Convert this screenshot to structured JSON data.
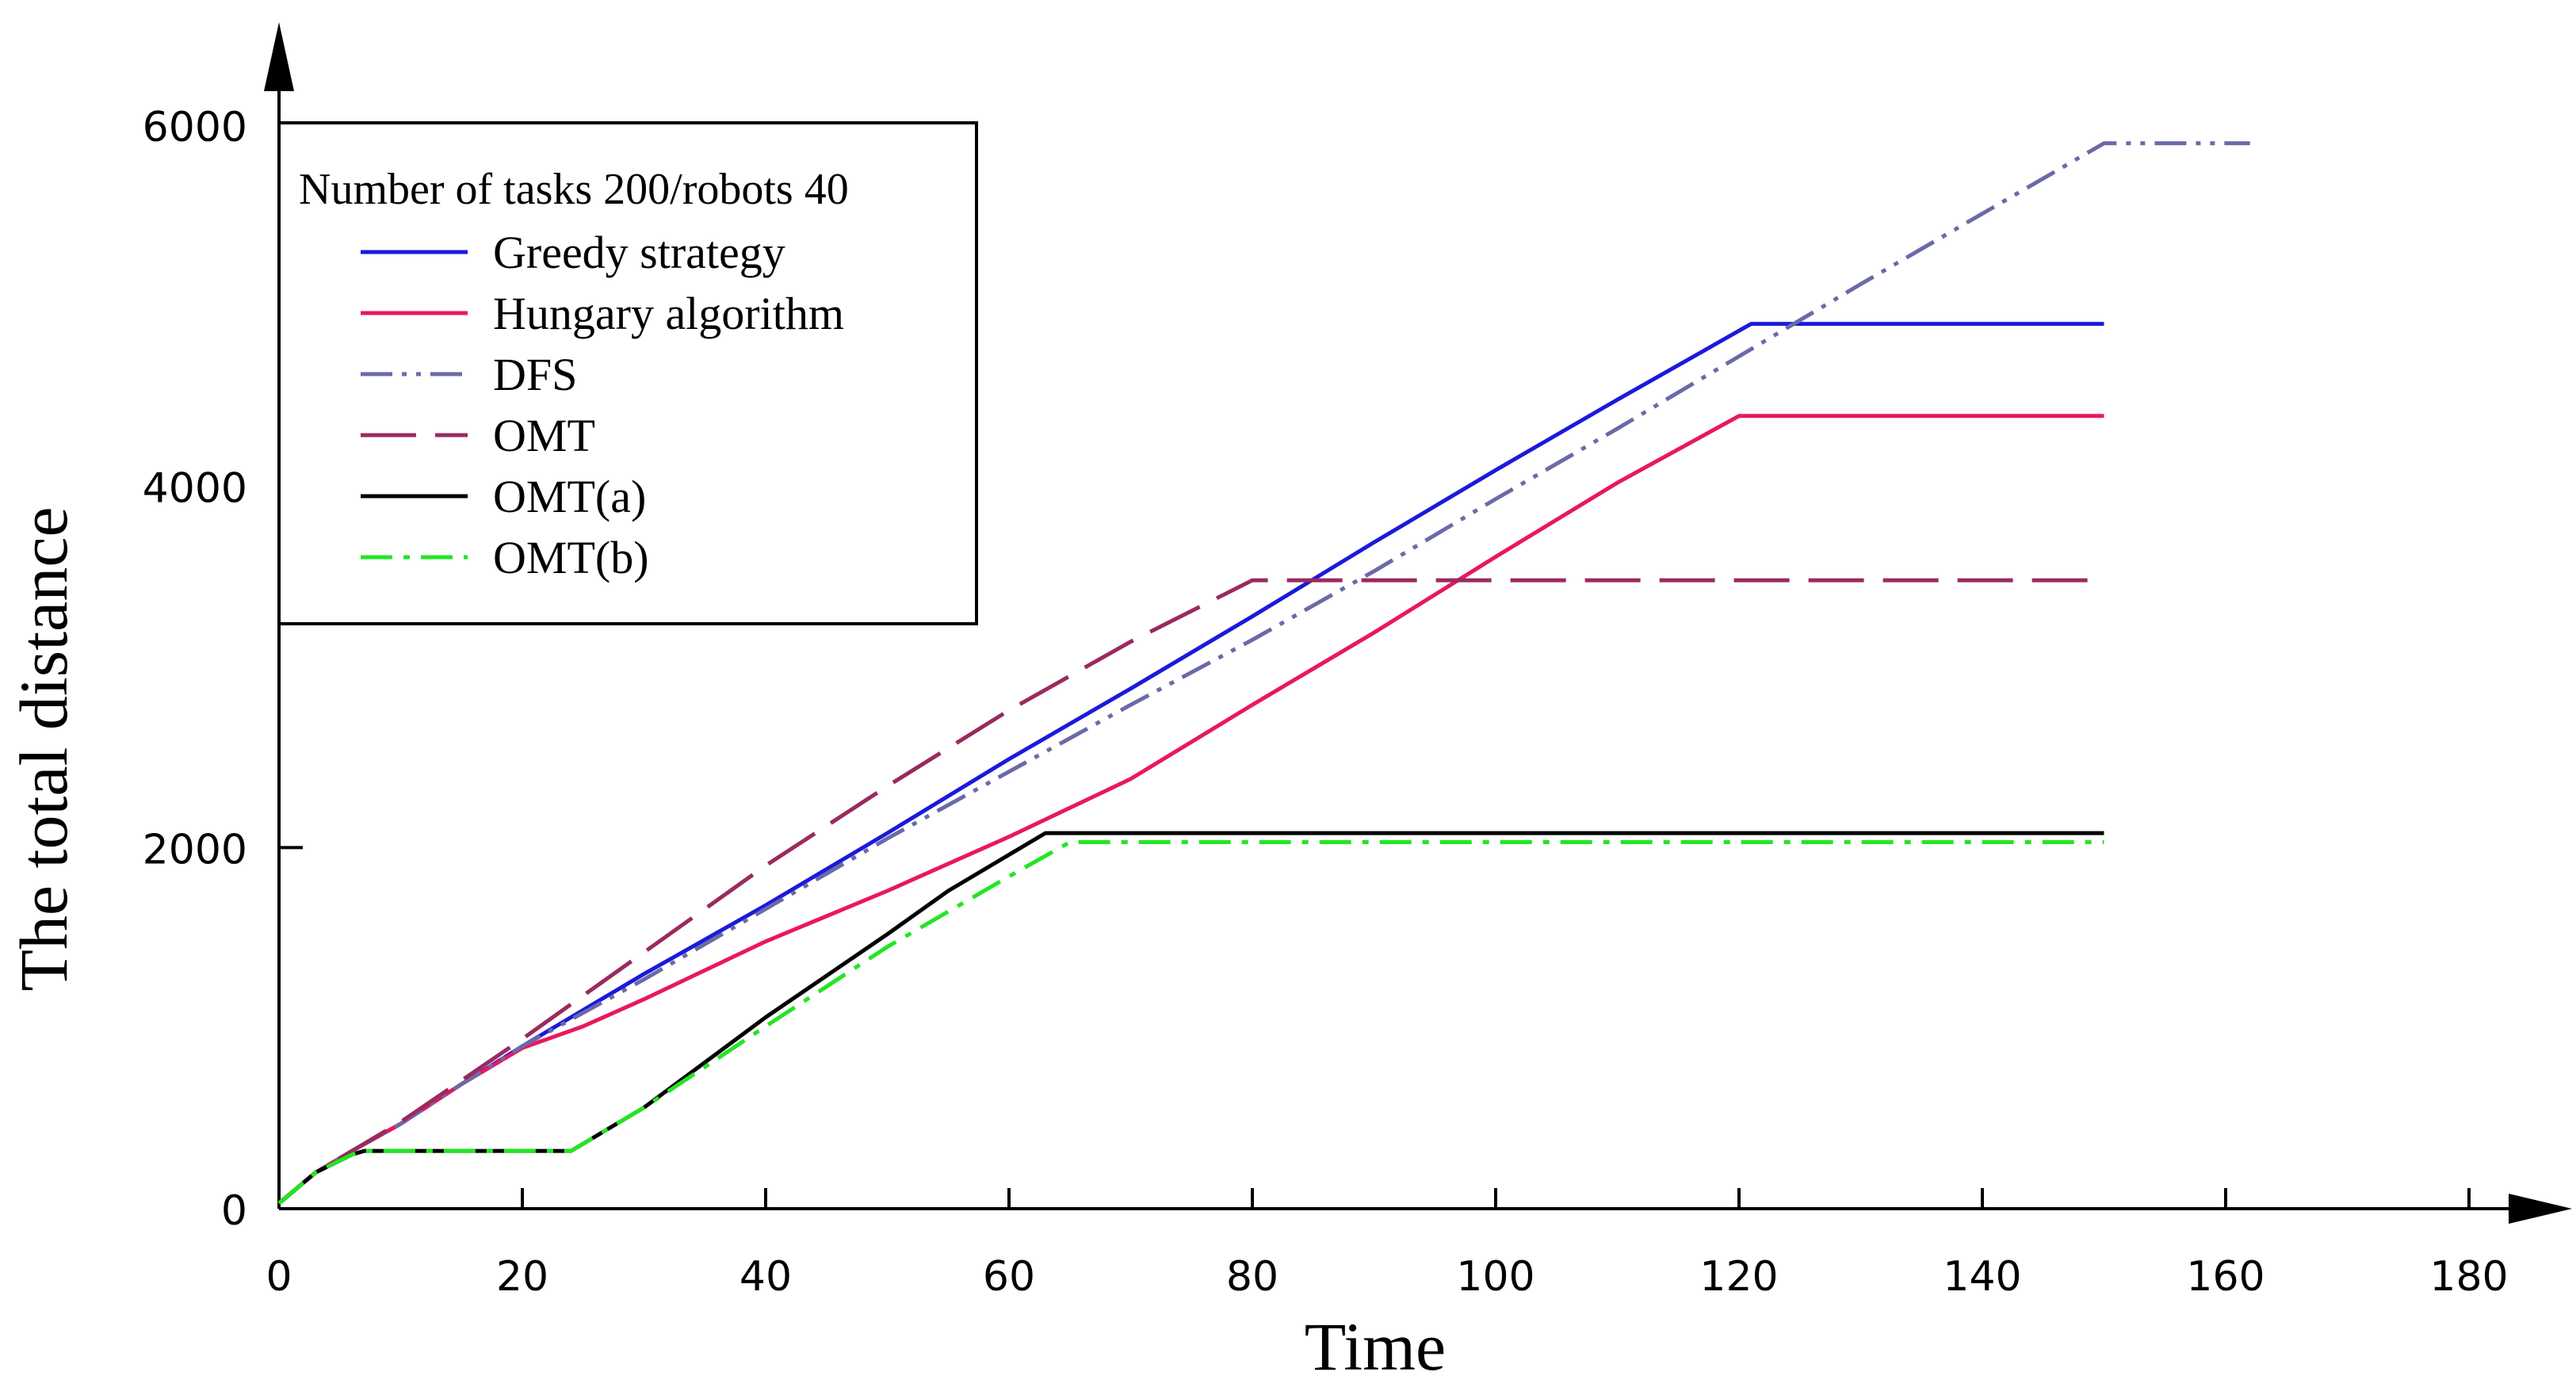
{
  "chart_data": {
    "type": "line",
    "title": "",
    "xlabel": "Time",
    "ylabel": "The total distance",
    "xlim": [
      0,
      180
    ],
    "ylim": [
      0,
      6000
    ],
    "x_ticks": [
      0,
      20,
      40,
      60,
      80,
      100,
      120,
      140,
      160,
      180
    ],
    "y_ticks": [
      0,
      2000,
      4000,
      6000
    ],
    "grid": false,
    "legend_title": "Number of tasks 200/robots 40",
    "legend_position": "top-left",
    "series": [
      {
        "name": "Greedy strategy",
        "color": "#1a1adb",
        "dash": "solid",
        "x": [
          0,
          3,
          6,
          10,
          15,
          20,
          30,
          40,
          50,
          60,
          70,
          80,
          90,
          100,
          110,
          121,
          150
        ],
        "y": [
          30,
          200,
          320,
          470,
          690,
          900,
          1300,
          1680,
          2080,
          2490,
          2880,
          3280,
          3690,
          4090,
          4480,
          4900,
          4900
        ]
      },
      {
        "name": "Hungary algorithm",
        "color": "#e8195a",
        "dash": "solid",
        "x": [
          0,
          3,
          6,
          10,
          15,
          20,
          25,
          30,
          40,
          50,
          60,
          70,
          80,
          90,
          100,
          110,
          120,
          150
        ],
        "y": [
          30,
          200,
          320,
          470,
          690,
          890,
          1010,
          1160,
          1480,
          1760,
          2060,
          2380,
          2790,
          3190,
          3610,
          4020,
          4390,
          4390
        ]
      },
      {
        "name": "DFS",
        "color": "#6a6aa8",
        "dash": "dashdotdot",
        "x": [
          0,
          3,
          6,
          10,
          15,
          20,
          30,
          40,
          50,
          60,
          70,
          80,
          90,
          100,
          110,
          120,
          130,
          140,
          150,
          162
        ],
        "y": [
          30,
          200,
          320,
          470,
          690,
          900,
          1270,
          1660,
          2050,
          2420,
          2790,
          3150,
          3530,
          3930,
          4320,
          4720,
          5120,
          5510,
          5900,
          5900
        ]
      },
      {
        "name": "OMT",
        "color": "#9a2a5e",
        "dash": "longdash",
        "x": [
          0,
          3,
          6,
          10,
          15,
          20,
          30,
          40,
          50,
          60,
          70,
          80,
          150
        ],
        "y": [
          30,
          200,
          320,
          480,
          710,
          940,
          1420,
          1900,
          2340,
          2760,
          3140,
          3480,
          3480
        ]
      },
      {
        "name": "OMT(a)",
        "color": "#000000",
        "dash": "solid",
        "x": [
          0,
          3,
          6,
          7,
          24,
          30,
          40,
          50,
          55,
          63,
          150
        ],
        "y": [
          30,
          200,
          300,
          320,
          320,
          560,
          1060,
          1520,
          1760,
          2080,
          2080
        ]
      },
      {
        "name": "OMT(b)",
        "color": "#22e622",
        "dash": "dashdot",
        "x": [
          0,
          3,
          6,
          7,
          24,
          30,
          40,
          50,
          60,
          65,
          150
        ],
        "y": [
          30,
          200,
          300,
          320,
          320,
          560,
          1010,
          1450,
          1840,
          2030,
          2030
        ]
      }
    ]
  }
}
